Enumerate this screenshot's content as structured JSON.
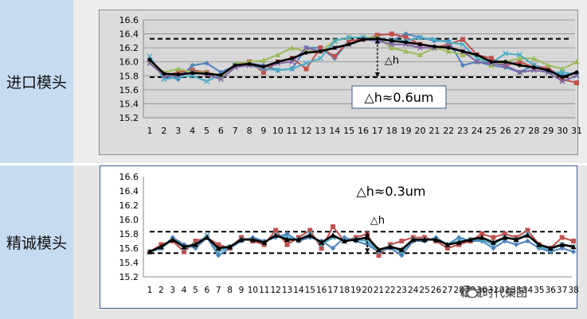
{
  "labels": {
    "row1": "进口模头",
    "row2": "精诚模头"
  },
  "watermark": "精诚时代集团",
  "colors": {
    "blue": "#4f81bd",
    "red": "#c0504d",
    "green": "#9bbb59",
    "cyan": "#4bacc6",
    "purple": "#8064a2",
    "black": "#000000",
    "label_bg": "#c6daf0"
  },
  "chart_data": [
    {
      "type": "line",
      "x": [
        1,
        2,
        3,
        4,
        5,
        6,
        7,
        8,
        9,
        10,
        11,
        12,
        13,
        14,
        15,
        16,
        17,
        18,
        19,
        20,
        21,
        22,
        23,
        24,
        25,
        26,
        27,
        28,
        29,
        30,
        31
      ],
      "ylim": [
        15.2,
        16.6
      ],
      "yticks": [
        "16.6",
        "16.4",
        "16.2",
        "16.0",
        "15.8",
        "15.6",
        "15.4",
        "15.2"
      ],
      "grid": true,
      "annotations": {
        "box": "△h≈0.6um",
        "arrow_label": "△h",
        "upper_line": 16.33,
        "lower_line": 15.78,
        "arrow_x": 17
      },
      "series": [
        {
          "color": "blue",
          "marker": "diamond",
          "values": [
            16.05,
            15.8,
            15.75,
            15.95,
            15.98,
            15.85,
            15.95,
            15.98,
            15.95,
            15.88,
            15.9,
            16.2,
            16.2,
            16.05,
            16.3,
            16.32,
            16.35,
            16.3,
            16.4,
            16.35,
            16.3,
            16.3,
            15.95,
            16.0,
            15.95,
            15.92,
            15.85,
            15.95,
            15.9,
            15.8,
            15.85
          ]
        },
        {
          "color": "red",
          "marker": "square",
          "values": [
            16.03,
            15.8,
            15.85,
            15.88,
            15.85,
            15.8,
            15.95,
            16.0,
            15.85,
            16.0,
            16.05,
            15.9,
            16.2,
            16.08,
            16.3,
            16.32,
            16.38,
            16.4,
            16.35,
            16.25,
            16.2,
            16.25,
            16.32,
            16.1,
            16.05,
            15.95,
            16.0,
            15.92,
            15.92,
            15.75,
            15.7
          ]
        },
        {
          "color": "green",
          "marker": "triangle",
          "values": [
            16.0,
            15.85,
            15.9,
            15.85,
            15.85,
            15.78,
            15.98,
            16.0,
            16.02,
            16.1,
            16.2,
            16.15,
            16.15,
            16.3,
            16.35,
            16.35,
            16.35,
            16.2,
            16.15,
            16.1,
            16.2,
            16.15,
            16.1,
            16.1,
            15.95,
            16.0,
            16.05,
            16.05,
            15.95,
            15.9,
            16.0
          ]
        },
        {
          "color": "cyan",
          "marker": "x",
          "values": [
            16.08,
            15.75,
            15.78,
            15.8,
            15.72,
            15.82,
            15.95,
            15.95,
            15.9,
            15.88,
            15.9,
            15.98,
            16.05,
            16.3,
            16.35,
            16.35,
            16.32,
            16.3,
            16.3,
            16.35,
            16.32,
            16.28,
            16.25,
            16.05,
            15.98,
            16.12,
            16.1,
            15.95,
            15.85,
            15.85,
            15.82
          ]
        },
        {
          "color": "purple",
          "marker": "x",
          "values": [
            15.98,
            15.8,
            15.8,
            15.85,
            15.82,
            15.75,
            15.92,
            15.95,
            15.92,
            15.98,
            16.0,
            16.2,
            16.15,
            16.2,
            16.25,
            16.32,
            16.3,
            16.25,
            16.25,
            16.2,
            16.2,
            16.22,
            16.15,
            16.0,
            15.98,
            15.95,
            15.85,
            15.88,
            15.85,
            15.72,
            15.8
          ]
        },
        {
          "color": "black",
          "marker": "circle",
          "values": [
            16.03,
            15.83,
            15.82,
            15.84,
            15.83,
            15.81,
            15.95,
            15.97,
            15.93,
            16.0,
            16.05,
            16.13,
            16.15,
            16.2,
            16.25,
            16.32,
            16.33,
            16.3,
            16.28,
            16.25,
            16.22,
            16.2,
            16.15,
            16.1,
            16.0,
            16.0,
            15.95,
            15.92,
            15.88,
            15.78,
            15.85
          ]
        }
      ]
    },
    {
      "type": "line",
      "x": [
        1,
        2,
        3,
        4,
        5,
        6,
        7,
        8,
        9,
        10,
        11,
        12,
        13,
        14,
        15,
        16,
        17,
        18,
        19,
        20,
        21,
        22,
        23,
        24,
        25,
        26,
        27,
        28,
        29,
        30,
        31,
        32,
        33,
        34,
        35,
        36,
        37,
        38
      ],
      "ylim": [
        15.2,
        16.6
      ],
      "yticks": [
        "16.6",
        "16.4",
        "16.2",
        "16.0",
        "15.8",
        "15.6",
        "15.4",
        "15.2"
      ],
      "grid": false,
      "annotations": {
        "box": "△h≈0.3um",
        "arrow_label": "△h",
        "upper_line": 15.83,
        "lower_line": 15.53,
        "arrow_x": 20
      },
      "series": [
        {
          "color": "blue",
          "marker": "diamond",
          "values": [
            15.55,
            15.6,
            15.75,
            15.65,
            15.6,
            15.75,
            15.5,
            15.6,
            15.7,
            15.75,
            15.7,
            15.75,
            15.8,
            15.7,
            15.75,
            15.7,
            15.6,
            15.75,
            15.7,
            15.65,
            15.55,
            15.6,
            15.5,
            15.7,
            15.7,
            15.75,
            15.65,
            15.75,
            15.7,
            15.7,
            15.6,
            15.7,
            15.65,
            15.7,
            15.6,
            15.55,
            15.6,
            15.55
          ]
        },
        {
          "color": "red",
          "marker": "square",
          "values": [
            15.55,
            15.65,
            15.7,
            15.55,
            15.7,
            15.75,
            15.65,
            15.6,
            15.75,
            15.7,
            15.65,
            15.85,
            15.65,
            15.75,
            15.85,
            15.6,
            15.9,
            15.7,
            15.75,
            15.8,
            15.5,
            15.65,
            15.7,
            15.75,
            15.75,
            15.7,
            15.6,
            15.65,
            15.7,
            15.8,
            15.75,
            15.8,
            15.75,
            15.85,
            15.65,
            15.6,
            15.75,
            15.7
          ]
        },
        {
          "color": "cyan",
          "marker": "x",
          "values": [
            15.55,
            15.6,
            15.72,
            15.6,
            15.65,
            15.78,
            15.55,
            15.62,
            15.72,
            15.72,
            15.68,
            15.78,
            15.75,
            15.72,
            15.8,
            15.65,
            15.75,
            15.72,
            15.72,
            15.7,
            15.55,
            15.62,
            15.55,
            15.72,
            15.72,
            15.72,
            15.65,
            15.7,
            15.72,
            15.72,
            15.65,
            15.75,
            15.72,
            15.8,
            15.62,
            15.58,
            15.65,
            15.62
          ]
        },
        {
          "color": "black",
          "marker": "triangle",
          "values": [
            15.55,
            15.62,
            15.72,
            15.62,
            15.65,
            15.75,
            15.6,
            15.62,
            15.72,
            15.72,
            15.68,
            15.78,
            15.72,
            15.72,
            15.78,
            15.68,
            15.78,
            15.7,
            15.72,
            15.75,
            15.58,
            15.62,
            15.58,
            15.72,
            15.72,
            15.72,
            15.65,
            15.68,
            15.72,
            15.75,
            15.68,
            15.75,
            15.72,
            15.78,
            15.65,
            15.6,
            15.65,
            15.62
          ]
        }
      ]
    }
  ]
}
